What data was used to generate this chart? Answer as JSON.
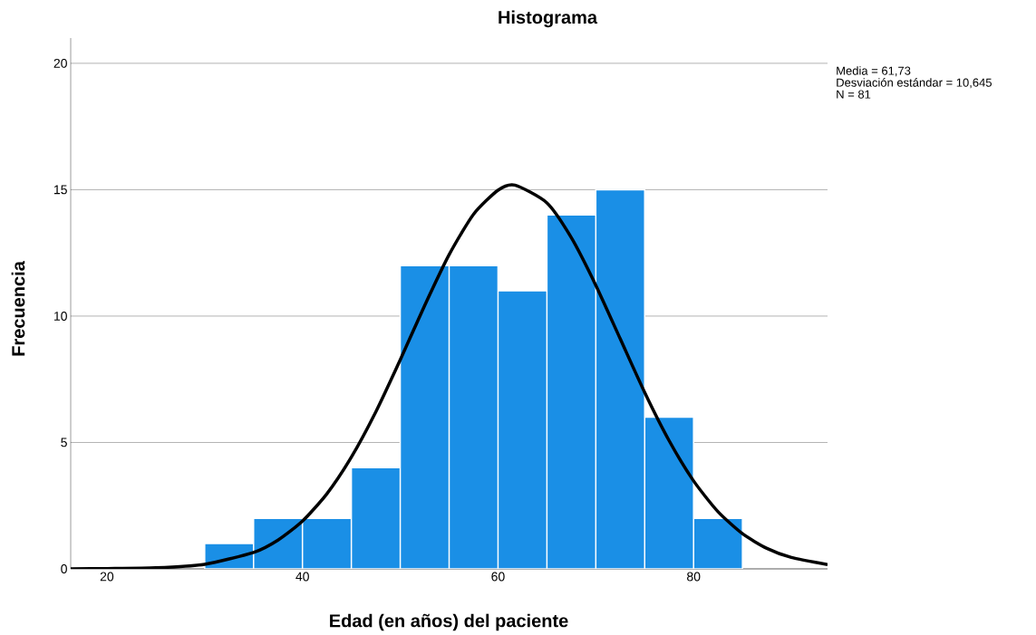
{
  "chart_data": {
    "type": "histogram",
    "title": "Histograma",
    "xlabel": "Edad (en años) del paciente",
    "ylabel": "Frecuencia",
    "annotations": [
      "Media = 61,73",
      "Desviación estándar = 10,645",
      "N = 81"
    ],
    "xlim": [
      16.3,
      93.7
    ],
    "ylim": [
      0,
      21
    ],
    "xticks": [
      20,
      40,
      60,
      80
    ],
    "yticks": [
      0,
      5,
      10,
      15,
      20
    ],
    "grid": "y",
    "series": [
      {
        "color": "#1a8fe6",
        "bins": [
          30,
          35,
          40,
          45,
          50,
          55,
          60,
          65,
          70,
          75,
          80,
          85
        ],
        "values": [
          1,
          2,
          2,
          4,
          12,
          12,
          11,
          14,
          15,
          6,
          2
        ]
      },
      {
        "type": "line",
        "color": "#000000",
        "x": [
          16.3,
          20,
          25,
          30,
          35,
          37.5,
          40,
          42.5,
          45,
          47.5,
          50,
          52.5,
          55,
          57.5,
          60,
          61.73,
          65,
          67.5,
          70,
          72.5,
          75,
          77.5,
          80,
          82.5,
          85,
          87.5,
          90,
          93.7
        ],
        "values": [
          0.0,
          0.01,
          0.04,
          0.18,
          0.65,
          1.14,
          1.89,
          2.97,
          4.42,
          6.21,
          8.27,
          10.42,
          12.43,
          14.03,
          14.98,
          15.18,
          14.48,
          13.1,
          11.22,
          9.1,
          6.98,
          5.07,
          3.48,
          2.26,
          1.39,
          0.81,
          0.45,
          0.17
        ]
      }
    ]
  }
}
